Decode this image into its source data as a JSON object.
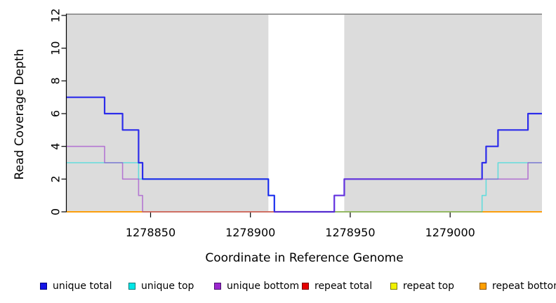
{
  "chart_data": {
    "type": "line",
    "variant": "step-coverage",
    "title": "",
    "xlabel": "Coordinate in Reference Genome",
    "ylabel": "Read Coverage Depth",
    "x_range": [
      1278808,
      1279046
    ],
    "y_range": [
      0,
      12
    ],
    "x_ticks": [
      1278850,
      1278900,
      1278950,
      1279000
    ],
    "y_ticks": [
      0,
      2,
      4,
      6,
      8,
      10,
      12
    ],
    "grid": false,
    "legend_position": "bottom",
    "plot_background": "#ffffff",
    "shaded_region_color": "#DCDCDC",
    "shaded_regions": [
      {
        "from": 1278808,
        "to": 1278909
      },
      {
        "from": 1278947,
        "to": 1279046
      }
    ],
    "gap_region": {
      "from": 1278909,
      "to": 1278947
    },
    "max_depth_line": {
      "value": 12,
      "color": "#707070"
    },
    "axis_color": "#000000",
    "series": [
      {
        "name": "unique total",
        "line_color": "#0000EE",
        "line_opacity": 0.8,
        "line_width": 2.2,
        "swatch_fill": "#1414E6",
        "swatch_border": "#000080",
        "draw_order": 5,
        "steps": [
          [
            1278808,
            7
          ],
          [
            1278827,
            6
          ],
          [
            1278836,
            5
          ],
          [
            1278844,
            3
          ],
          [
            1278846,
            2
          ],
          [
            1278909,
            1
          ],
          [
            1278912,
            0
          ],
          [
            1278942,
            1
          ],
          [
            1278947,
            2
          ],
          [
            1279016,
            3
          ],
          [
            1279018,
            4
          ],
          [
            1279024,
            5
          ],
          [
            1279039,
            6
          ]
        ]
      },
      {
        "name": "unique top",
        "line_color": "#00DCDC",
        "line_opacity": 0.55,
        "line_width": 1.6,
        "swatch_fill": "#00E6E6",
        "swatch_border": "#007A7A",
        "draw_order": 4,
        "steps": [
          [
            1278808,
            3
          ],
          [
            1278844,
            2
          ],
          [
            1278909,
            1
          ],
          [
            1278912,
            0
          ],
          [
            1279016,
            1
          ],
          [
            1279018,
            2
          ],
          [
            1279024,
            3
          ]
        ]
      },
      {
        "name": "unique bottom",
        "line_color": "#9933CC",
        "line_opacity": 0.6,
        "line_width": 1.6,
        "swatch_fill": "#9C27CE",
        "swatch_border": "#4A1070",
        "draw_order": 6,
        "steps": [
          [
            1278808,
            4
          ],
          [
            1278827,
            3
          ],
          [
            1278836,
            2
          ],
          [
            1278844,
            1
          ],
          [
            1278846,
            0
          ],
          [
            1278942,
            1
          ],
          [
            1278947,
            2
          ],
          [
            1279039,
            3
          ]
        ]
      },
      {
        "name": "repeat total",
        "line_color": "#DD0000",
        "line_opacity": 0.75,
        "line_width": 1.6,
        "swatch_fill": "#E60000",
        "swatch_border": "#7A0000",
        "draw_order": 1,
        "steps": [
          [
            1278808,
            0
          ]
        ]
      },
      {
        "name": "repeat top",
        "line_color": "#EEEE00",
        "line_opacity": 0.85,
        "line_width": 1.6,
        "swatch_fill": "#F2F200",
        "swatch_border": "#7A7A00",
        "draw_order": 2,
        "steps": [
          [
            1278808,
            0
          ]
        ]
      },
      {
        "name": "repeat bottom",
        "line_color": "#FF9900",
        "line_opacity": 0.95,
        "line_width": 1.8,
        "swatch_fill": "#FFA000",
        "swatch_border": "#8A5200",
        "draw_order": 3,
        "steps": [
          [
            1278808,
            0
          ]
        ]
      }
    ]
  }
}
